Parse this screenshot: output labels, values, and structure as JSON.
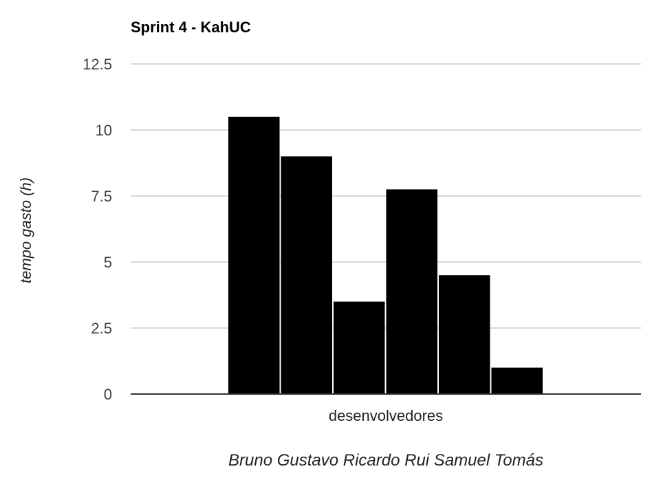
{
  "chart_data": {
    "type": "bar",
    "title": "Sprint 4 - KahUC",
    "xlabel": "Bruno Gustavo Ricardo Rui Samuel Tomás",
    "ylabel": "tempo gasto (h)",
    "categories": [
      "desenvolvedores"
    ],
    "series": [
      {
        "values": [
          10.5
        ]
      },
      {
        "values": [
          9
        ]
      },
      {
        "values": [
          3.5
        ]
      },
      {
        "values": [
          7.75
        ]
      },
      {
        "values": [
          4.5
        ]
      },
      {
        "values": [
          1
        ]
      }
    ],
    "ylim": [
      0,
      12.5
    ],
    "yticks": [
      "0",
      "2.5",
      "5",
      "7.5",
      "10",
      "12.5"
    ],
    "yticks_values": [
      0,
      2.5,
      5,
      7.5,
      10,
      12.5
    ],
    "grid": true,
    "colors": {
      "bar": "#000000",
      "grid": "#cccccc",
      "axis": "#333333"
    }
  }
}
